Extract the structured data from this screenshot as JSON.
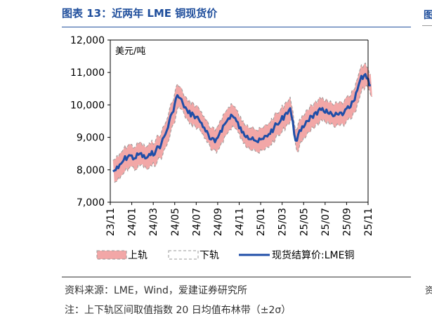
{
  "figure": {
    "title": "图表 13：近两年 LME 铜现货价",
    "source": "资料来源：LME，Wind，爱建证券研究所",
    "note": "注：上下轨区间取值指数 20 日均值布林带（±2σ）",
    "edge_glyph_top": "图",
    "edge_glyph_bottom": "资"
  },
  "chart_data": {
    "type": "line",
    "title": "",
    "ylabel": "美元/吨",
    "xlabel": "",
    "ylim": [
      7000,
      12000
    ],
    "yticks": [
      7000,
      8000,
      9000,
      10000,
      11000,
      12000
    ],
    "ytick_labels": [
      "7,000",
      "8,000",
      "9,000",
      "10,000",
      "11,000",
      "12,000"
    ],
    "xticks": [
      "23/11",
      "24/01",
      "24/03",
      "24/05",
      "24/07",
      "24/09",
      "24/11",
      "25/01",
      "25/03",
      "25/05",
      "25/07",
      "25/09",
      "25/11"
    ],
    "legend_position": "bottom",
    "colors": {
      "band": "#f2a7a7",
      "band_edge": "#9a9a9a",
      "spot": "#1f4ea8"
    },
    "series": [
      {
        "name": "现货结算价:LME铜",
        "x": [
          "23/11",
          "23/11",
          "23/12",
          "23/12",
          "24/01",
          "24/01",
          "24/02",
          "24/02",
          "24/03",
          "24/03",
          "24/04",
          "24/04",
          "24/05",
          "24/05",
          "24/06",
          "24/06",
          "24/07",
          "24/07",
          "24/08",
          "24/08",
          "24/09",
          "24/09",
          "24/10",
          "24/10",
          "24/11",
          "24/11",
          "24/12",
          "24/12",
          "25/01",
          "25/01",
          "25/02",
          "25/02",
          "25/03",
          "25/03",
          "25/04",
          "25/04",
          "25/05",
          "25/05",
          "25/06",
          "25/06",
          "25/07",
          "25/07",
          "25/08",
          "25/08",
          "25/09",
          "25/09",
          "25/10",
          "25/10",
          "25/11"
        ],
        "values": [
          7950,
          8050,
          8300,
          8450,
          8350,
          8500,
          8350,
          8450,
          8600,
          8800,
          9200,
          9750,
          10300,
          10050,
          9750,
          9700,
          9550,
          9300,
          8950,
          8850,
          9200,
          9450,
          9700,
          9500,
          9150,
          9050,
          9000,
          8850,
          8950,
          9100,
          9300,
          9450,
          9700,
          9900,
          8900,
          9200,
          9500,
          9650,
          9700,
          9900,
          9750,
          9650,
          9700,
          9750,
          9900,
          10150,
          10750,
          10950,
          10600
        ]
      },
      {
        "name": "上轨",
        "values": []
      },
      {
        "name": "下轨",
        "values": []
      }
    ]
  }
}
